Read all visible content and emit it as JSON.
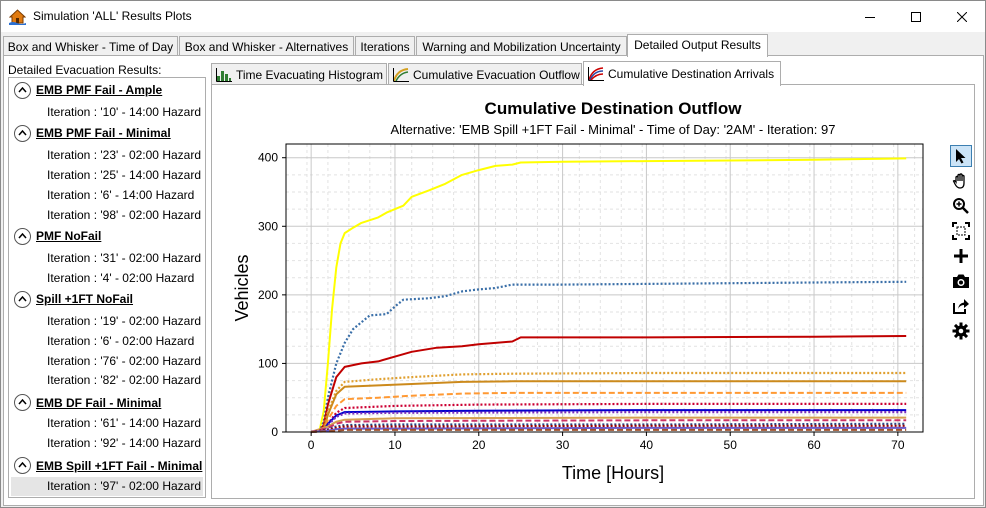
{
  "window": {
    "title": "Simulation 'ALL' Results Plots",
    "icon": "house-flood-icon"
  },
  "main_tabs": [
    {
      "label": "Box and Whisker - Time of Day",
      "active": false
    },
    {
      "label": "Box and Whisker - Alternatives",
      "active": false
    },
    {
      "label": "Iterations",
      "active": false
    },
    {
      "label": "Warning and Mobilization Uncertainty",
      "active": false
    },
    {
      "label": "Detailed Output Results",
      "active": true
    }
  ],
  "tree": {
    "label": "Detailed Evacuation Results:",
    "groups": [
      {
        "name": "EMB PMF Fail - Ample",
        "items": [
          "Iteration : '10' - 14:00 Hazard"
        ]
      },
      {
        "name": "EMB PMF Fail - Minimal",
        "items": [
          "Iteration : '23' - 02:00 Hazard",
          "Iteration : '25' - 14:00 Hazard",
          "Iteration : '6' - 14:00 Hazard",
          "Iteration : '98' - 02:00 Hazard"
        ]
      },
      {
        "name": "PMF NoFail",
        "items": [
          "Iteration : '31' - 02:00 Hazard",
          "Iteration : '4' - 02:00 Hazard"
        ]
      },
      {
        "name": "Spill +1FT NoFail",
        "items": [
          "Iteration : '19' - 02:00 Hazard",
          "Iteration : '6' - 02:00 Hazard",
          "Iteration : '76' - 02:00 Hazard",
          "Iteration : '82' - 02:00 Hazard"
        ]
      },
      {
        "name": "EMB DF Fail - Minimal",
        "items": [
          "Iteration : '61' - 14:00 Hazard",
          "Iteration : '92' - 14:00 Hazard"
        ]
      },
      {
        "name": "EMB Spill +1FT Fail - Minimal",
        "items": [
          "Iteration : '97' - 02:00 Hazard"
        ]
      }
    ],
    "selected": "Iteration : '97' - 02:00 Hazard"
  },
  "sub_tabs": [
    {
      "label": "Time Evacuating Histogram",
      "icon": "histogram-icon",
      "active": false
    },
    {
      "label": "Cumulative Evacuation Outflow",
      "icon": "outflow-curve-icon",
      "active": false
    },
    {
      "label": "Cumulative Destination Arrivals",
      "icon": "arrivals-curve-icon",
      "active": true
    }
  ],
  "toolbar": [
    "pointer-icon",
    "pan-hand-icon",
    "zoom-icon",
    "zoom-fit-icon",
    "add-icon",
    "camera-icon",
    "export-icon",
    "settings-gear-icon"
  ],
  "chart_data": {
    "type": "line",
    "title": "Cumulative Destination Outflow",
    "subtitle": "Alternative: 'EMB Spill +1FT Fail - Minimal' - Time of Day: '2AM' - Iteration: 97",
    "xlabel": "Time [Hours]",
    "ylabel": "Vehicles",
    "xlim": [
      -3,
      73
    ],
    "ylim": [
      0,
      420
    ],
    "xticks": [
      0,
      10,
      20,
      30,
      40,
      50,
      60,
      70
    ],
    "yticks": [
      0,
      100,
      200,
      300,
      400
    ],
    "grid": true,
    "series": [
      {
        "color": "#ffff00",
        "style": "solid",
        "points": [
          [
            0,
            0
          ],
          [
            1,
            2
          ],
          [
            1.5,
            30
          ],
          [
            2,
            100
          ],
          [
            2.5,
            180
          ],
          [
            3,
            240
          ],
          [
            3.5,
            275
          ],
          [
            4,
            290
          ],
          [
            5,
            298
          ],
          [
            6,
            305
          ],
          [
            8,
            313
          ],
          [
            9,
            320
          ],
          [
            10,
            325
          ],
          [
            11,
            330
          ],
          [
            12,
            343
          ],
          [
            14,
            352
          ],
          [
            16,
            362
          ],
          [
            18,
            375
          ],
          [
            20,
            382
          ],
          [
            22,
            388
          ],
          [
            24,
            390
          ],
          [
            25,
            393
          ],
          [
            30,
            394
          ],
          [
            40,
            395
          ],
          [
            50,
            396
          ],
          [
            60,
            397
          ],
          [
            65,
            398
          ],
          [
            71,
            399
          ]
        ]
      },
      {
        "color": "#3a6fa8",
        "style": "dotted",
        "points": [
          [
            0,
            0
          ],
          [
            1,
            1
          ],
          [
            1.5,
            15
          ],
          [
            2,
            50
          ],
          [
            3,
            100
          ],
          [
            4,
            130
          ],
          [
            5,
            150
          ],
          [
            6,
            160
          ],
          [
            7,
            170
          ],
          [
            9,
            172
          ],
          [
            10,
            183
          ],
          [
            11,
            193
          ],
          [
            14,
            195
          ],
          [
            16,
            198
          ],
          [
            18,
            205
          ],
          [
            20,
            208
          ],
          [
            22,
            210
          ],
          [
            24,
            215
          ],
          [
            30,
            215
          ],
          [
            40,
            216
          ],
          [
            50,
            217
          ],
          [
            60,
            218
          ],
          [
            71,
            219
          ]
        ]
      },
      {
        "color": "#c00000",
        "style": "solid",
        "points": [
          [
            0,
            0
          ],
          [
            1,
            1
          ],
          [
            1.5,
            10
          ],
          [
            2,
            40
          ],
          [
            3,
            80
          ],
          [
            4,
            95
          ],
          [
            6,
            100
          ],
          [
            8,
            103
          ],
          [
            10,
            110
          ],
          [
            12,
            117
          ],
          [
            15,
            123
          ],
          [
            18,
            125
          ],
          [
            20,
            128
          ],
          [
            24,
            132
          ],
          [
            25,
            138
          ],
          [
            40,
            138
          ],
          [
            60,
            139
          ],
          [
            71,
            140
          ]
        ]
      },
      {
        "color": "#e0a030",
        "style": "dotted",
        "points": [
          [
            0,
            0
          ],
          [
            1.5,
            5
          ],
          [
            2,
            30
          ],
          [
            3,
            60
          ],
          [
            4,
            73
          ],
          [
            8,
            77
          ],
          [
            12,
            80
          ],
          [
            18,
            84
          ],
          [
            24,
            85
          ],
          [
            40,
            86
          ],
          [
            71,
            86
          ]
        ]
      },
      {
        "color": "#cc8a1c",
        "style": "solid",
        "points": [
          [
            0,
            0
          ],
          [
            1.5,
            4
          ],
          [
            2,
            25
          ],
          [
            3,
            55
          ],
          [
            4,
            66
          ],
          [
            8,
            68
          ],
          [
            12,
            70
          ],
          [
            18,
            73
          ],
          [
            24,
            74
          ],
          [
            40,
            74
          ],
          [
            71,
            74
          ]
        ]
      },
      {
        "color": "#ff9933",
        "style": "dashed",
        "points": [
          [
            0,
            0
          ],
          [
            1.5,
            3
          ],
          [
            2,
            18
          ],
          [
            3,
            38
          ],
          [
            4,
            48
          ],
          [
            8,
            50
          ],
          [
            12,
            53
          ],
          [
            18,
            56
          ],
          [
            24,
            57
          ],
          [
            40,
            57
          ],
          [
            71,
            57
          ]
        ]
      },
      {
        "color": "#cc0033",
        "style": "dotted",
        "points": [
          [
            0,
            0
          ],
          [
            1.5,
            2
          ],
          [
            2,
            12
          ],
          [
            3,
            28
          ],
          [
            4,
            35
          ],
          [
            10,
            38
          ],
          [
            20,
            40
          ],
          [
            40,
            41
          ],
          [
            71,
            41
          ]
        ]
      },
      {
        "color": "#0000cc",
        "style": "solid",
        "points": [
          [
            0,
            0
          ],
          [
            1.5,
            2
          ],
          [
            2,
            12
          ],
          [
            3,
            24
          ],
          [
            4,
            29
          ],
          [
            10,
            30
          ],
          [
            20,
            31
          ],
          [
            40,
            32
          ],
          [
            71,
            32
          ]
        ]
      },
      {
        "color": "#7b2fbf",
        "style": "dotted",
        "points": [
          [
            0,
            0
          ],
          [
            1.5,
            2
          ],
          [
            2,
            10
          ],
          [
            3,
            22
          ],
          [
            4,
            27
          ],
          [
            10,
            28
          ],
          [
            40,
            29
          ],
          [
            71,
            29
          ]
        ]
      },
      {
        "color": "#d4a050",
        "style": "solid",
        "points": [
          [
            0,
            0
          ],
          [
            2,
            8
          ],
          [
            3,
            15
          ],
          [
            4,
            18
          ],
          [
            10,
            20
          ],
          [
            40,
            21
          ],
          [
            71,
            21
          ]
        ]
      },
      {
        "color": "#cc3366",
        "style": "dashed",
        "points": [
          [
            0,
            0
          ],
          [
            2,
            6
          ],
          [
            3,
            12
          ],
          [
            4,
            15
          ],
          [
            10,
            16
          ],
          [
            40,
            17
          ],
          [
            71,
            17
          ]
        ]
      },
      {
        "color": "#2a4a8a",
        "style": "dotted",
        "points": [
          [
            0,
            0
          ],
          [
            2,
            4
          ],
          [
            3,
            8
          ],
          [
            4,
            10
          ],
          [
            10,
            11
          ],
          [
            40,
            11
          ],
          [
            71,
            12
          ]
        ]
      },
      {
        "color": "#990000",
        "style": "dotted",
        "points": [
          [
            0,
            0
          ],
          [
            2,
            3
          ],
          [
            3,
            6
          ],
          [
            4,
            8
          ],
          [
            10,
            8
          ],
          [
            40,
            9
          ],
          [
            71,
            9
          ]
        ]
      },
      {
        "color": "#6a5acd",
        "style": "solid",
        "points": [
          [
            0,
            0
          ],
          [
            2,
            2
          ],
          [
            3,
            4
          ],
          [
            4,
            5
          ],
          [
            10,
            5
          ],
          [
            40,
            6
          ],
          [
            71,
            6
          ]
        ]
      },
      {
        "color": "#a0522d",
        "style": "dashed",
        "points": [
          [
            0,
            0
          ],
          [
            2,
            1
          ],
          [
            3,
            2
          ],
          [
            4,
            3
          ],
          [
            20,
            3
          ],
          [
            71,
            3
          ]
        ]
      }
    ]
  }
}
